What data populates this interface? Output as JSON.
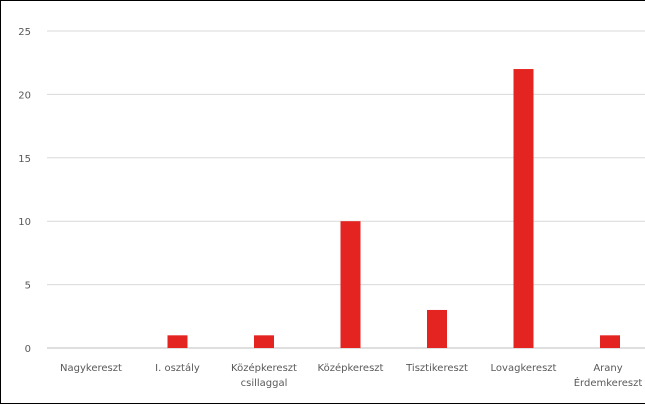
{
  "chart_data": {
    "type": "bar",
    "categories": [
      [
        "Nagykereszt"
      ],
      [
        "I. osztály"
      ],
      [
        "Középkereszt",
        "csillaggal"
      ],
      [
        "Középkereszt"
      ],
      [
        "Tisztikereszt"
      ],
      [
        "Lovagkereszt"
      ],
      [
        "Arany",
        "Érdemkereszt"
      ]
    ],
    "values": [
      0,
      1,
      1,
      10,
      3,
      22,
      1
    ],
    "ylim": [
      0,
      25
    ],
    "yticks": [
      "0",
      "5",
      "10",
      "15",
      "20",
      "25"
    ],
    "grid": true,
    "legend": "none",
    "title": "",
    "xlabel": "",
    "ylabel": "",
    "colors": {
      "bar": "#e32420",
      "grid": "#d9d9d9",
      "axis": "#bfbfbf",
      "text": "#595959"
    }
  }
}
